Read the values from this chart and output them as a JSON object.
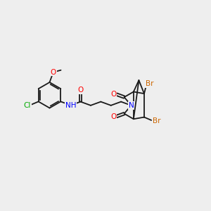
{
  "background_color": "#eeeeee",
  "bond_color": "#1a1a1a",
  "atom_colors": {
    "O": "#ff0000",
    "N": "#0000ff",
    "Cl": "#00aa00",
    "Br": "#cc6600",
    "C": "#1a1a1a",
    "H": "#1a1a1a"
  },
  "font_size": 7.5,
  "lw": 1.3
}
